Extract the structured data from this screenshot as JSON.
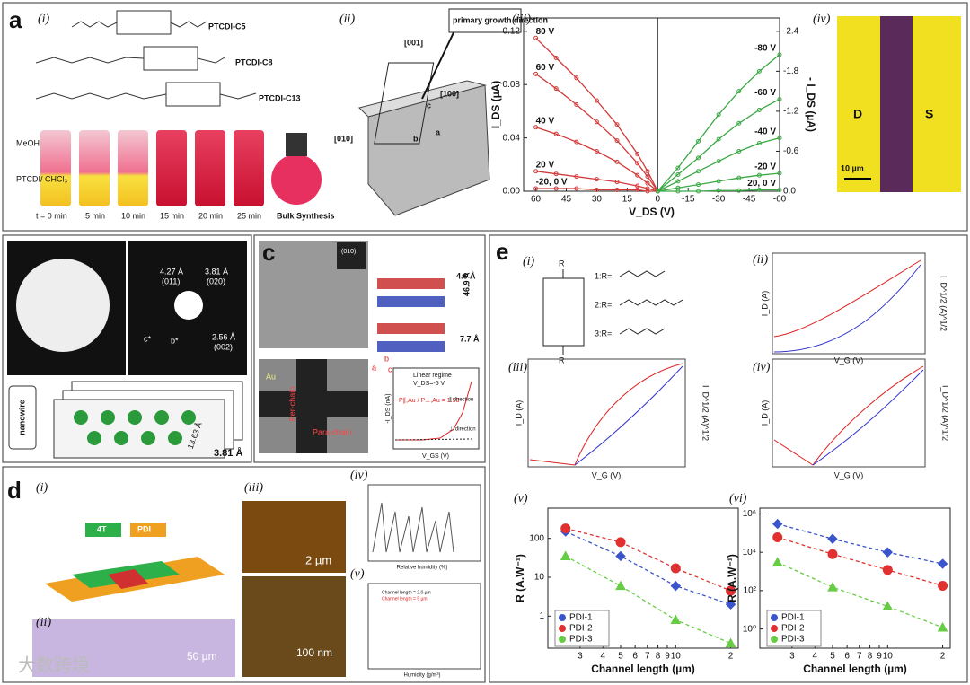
{
  "a": {
    "label": "a",
    "i": {
      "label": "(i)",
      "molecules": [
        "PTCDI-C5",
        "PTCDI-C8",
        "PTCDI-C13"
      ],
      "layers": [
        "MeOH",
        "PTCDI/ CHCl₃"
      ],
      "times": [
        "t = 0 min",
        "5 min",
        "10 min",
        "15 min",
        "20 min",
        "25 min"
      ],
      "bulk": "Bulk Synthesis"
    },
    "ii": {
      "label": "(ii)",
      "growth": "primary growth direction",
      "axes": [
        "[001]",
        "[100]",
        "[010]"
      ],
      "cell": [
        "c",
        "b",
        "a"
      ]
    },
    "iii": {
      "label": "(iii)",
      "chart_data": {
        "type": "line",
        "xlabel": "V_DS (V)",
        "ylabel": "I_DS (µA)",
        "y2label": "- I_DS (µA)",
        "xlim": [
          66,
          -60
        ],
        "ylim": [
          0,
          0.13
        ],
        "y2lim": [
          0,
          -2.6
        ],
        "xticks": [
          60,
          45,
          30,
          15,
          0,
          -15,
          -30,
          -45,
          -60
        ],
        "yticks": [
          {
            "value": 0,
            "label": "0.00"
          },
          {
            "value": 0.04,
            "label": "0.04"
          },
          {
            "value": 0.08,
            "label": "0.08"
          },
          {
            "value": 0.12,
            "label": "0.12"
          }
        ],
        "y2ticks": [
          {
            "value": 0,
            "label": "0.0"
          },
          -0.6,
          -1.2,
          -1.8,
          -2.4
        ],
        "labels": "inline",
        "marker": "circle",
        "series": [
          {
            "name": "80 V",
            "color": "#d23a3a",
            "x": [
              60,
              50,
              40,
              30,
              20,
              10,
              5,
              0
            ],
            "values": [
              0.115,
              0.1,
              0.085,
              0.068,
              0.05,
              0.028,
              0.015,
              0
            ]
          },
          {
            "name": "60 V",
            "color": "#d23a3a",
            "x": [
              60,
              50,
              40,
              30,
              20,
              10,
              5,
              0
            ],
            "values": [
              0.088,
              0.077,
              0.065,
              0.052,
              0.038,
              0.021,
              0.011,
              0
            ]
          },
          {
            "name": "40 V",
            "color": "#d23a3a",
            "x": [
              60,
              50,
              40,
              30,
              20,
              10,
              5,
              0
            ],
            "values": [
              0.048,
              0.043,
              0.037,
              0.03,
              0.022,
              0.012,
              0.006,
              0
            ]
          },
          {
            "name": "20 V",
            "color": "#d23a3a",
            "x": [
              60,
              50,
              40,
              30,
              20,
              10,
              5,
              0
            ],
            "values": [
              0.015,
              0.013,
              0.011,
              0.009,
              0.007,
              0.004,
              0.002,
              0
            ]
          },
          {
            "name": "-20, 0 V",
            "color": "#d23a3a",
            "x": [
              60,
              50,
              40,
              30,
              20,
              10,
              5,
              0
            ],
            "values": [
              0.002,
              0.002,
              0.002,
              0.001,
              0.001,
              0.001,
              0,
              0
            ]
          },
          {
            "name": "-80 V",
            "color": "#3aa844",
            "axis": "y2",
            "x": [
              0,
              -10,
              -20,
              -30,
              -40,
              -50,
              -60
            ],
            "values": [
              0,
              -0.35,
              -0.75,
              -1.15,
              -1.5,
              -1.8,
              -2.05
            ]
          },
          {
            "name": "-60 V",
            "color": "#3aa844",
            "axis": "y2",
            "x": [
              0,
              -10,
              -20,
              -30,
              -40,
              -50,
              -60
            ],
            "values": [
              0,
              -0.25,
              -0.5,
              -0.78,
              -1.02,
              -1.22,
              -1.38
            ]
          },
          {
            "name": "-40 V",
            "color": "#3aa844",
            "axis": "y2",
            "x": [
              0,
              -10,
              -20,
              -30,
              -40,
              -50,
              -60
            ],
            "values": [
              0,
              -0.15,
              -0.3,
              -0.45,
              -0.6,
              -0.72,
              -0.8
            ]
          },
          {
            "name": "-20 V",
            "color": "#3aa844",
            "axis": "y2",
            "x": [
              0,
              -10,
              -20,
              -30,
              -40,
              -50,
              -60
            ],
            "values": [
              0,
              -0.05,
              -0.1,
              -0.15,
              -0.2,
              -0.24,
              -0.27
            ]
          },
          {
            "name": "20, 0 V",
            "color": "#3aa844",
            "axis": "y2",
            "x": [
              0,
              -10,
              -20,
              -30,
              -40,
              -50,
              -60
            ],
            "values": [
              0,
              0,
              0,
              -0.01,
              -0.01,
              -0.02,
              -0.02
            ]
          }
        ]
      }
    },
    "iv": {
      "label": "(iv)",
      "electrodes": [
        "D",
        "S"
      ],
      "scale_bar": "10 µm"
    }
  },
  "b": {
    "label": "b",
    "spots": [
      "4.27 Å",
      "(011)",
      "3.81 Å",
      "(020)",
      "2.56 Å",
      "(002)"
    ],
    "axes": [
      "c*",
      "b*"
    ],
    "nanowire": "nanowire",
    "dims": [
      "13.63 Å",
      "3.81 Å"
    ]
  },
  "c": {
    "label": "c",
    "spot": "(010)",
    "dims": [
      "4.6 Å",
      "46.9 Å",
      "7.7 Å"
    ],
    "axes": [
      "a",
      "b",
      "c"
    ],
    "electrode": "Au",
    "chains": [
      "Per-chain",
      "Para-chain"
    ],
    "notes": [
      "Linear regime",
      "V_DS=-5 V",
      "P∥,Au / P⊥,Au = 1.53",
      "∥ direction",
      "⊥ direction"
    ],
    "xlabel": "V_GS (V)",
    "ylabel": "-I_DS (nA)"
  },
  "d": {
    "label": "d",
    "sub": [
      "(i)",
      "(ii)",
      "(iii)",
      "(iv)",
      "(v)"
    ],
    "blocks": [
      "4T",
      "PDI"
    ],
    "scales": [
      "50 µm",
      "2 µm",
      "100 nm"
    ],
    "legend": [
      "Channel length = 2.0 µm",
      "Channel length = 5 µm"
    ],
    "axis": [
      "Relative humidity (%)",
      "Humidity (g/m³)"
    ]
  },
  "e": {
    "label": "e",
    "sub": [
      "(i)",
      "(ii)",
      "(iii)",
      "(iv)",
      "(v)",
      "(vi)"
    ],
    "r_groups": [
      "1:R=",
      "2:R=",
      "3:R="
    ],
    "atom": "R",
    "vg": "V_G (V)",
    "id": "I_D (A)",
    "idsq": "I_D^1/2 (A)^1/2",
    "v": {
      "chart_data": {
        "type": "scatter",
        "xlog": true,
        "ylog": true,
        "dashed": true,
        "legend": "lower-left",
        "xlabel": "Channel length (µm)",
        "ylabel": "R (A.W⁻¹)",
        "x": [
          2.5,
          5,
          10,
          20
        ],
        "xlim": [
          2,
          22
        ],
        "ylim": [
          0.15,
          600
        ],
        "xticks": [
          3,
          4,
          5,
          6,
          7,
          8,
          9,
          10,
          {
            "value": 20,
            "label": "2"
          }
        ],
        "yticks": [
          1,
          10,
          100
        ],
        "series": [
          {
            "name": "PDI-1",
            "color": "#3a55cc",
            "marker": "diamond",
            "values": [
              150,
              35,
              6,
              2
            ]
          },
          {
            "name": "PDI-2",
            "color": "#e03030",
            "marker": "circle",
            "values": [
              180,
              80,
              17,
              4.5
            ]
          },
          {
            "name": "PDI-3",
            "color": "#66cc44",
            "marker": "triangle",
            "values": [
              35,
              6,
              0.8,
              0.2
            ]
          }
        ]
      }
    },
    "vi": {
      "chart_data": {
        "type": "scatter",
        "xlog": true,
        "ylog": true,
        "dashed": true,
        "legend": "lower-left",
        "xlabel": "Channel length (µm)",
        "ylabel": "R (A.W⁻¹)",
        "x": [
          2.5,
          5,
          10,
          20
        ],
        "xlim": [
          2,
          22
        ],
        "ylim": [
          0.1,
          2000000
        ],
        "xticks": [
          3,
          4,
          5,
          6,
          7,
          8,
          9,
          10,
          {
            "value": 20,
            "label": "2"
          }
        ],
        "yticks": [
          {
            "value": 1,
            "label": "10⁰"
          },
          {
            "value": 100,
            "label": "10²"
          },
          {
            "value": 10000,
            "label": "10⁴"
          },
          {
            "value": 1000000,
            "label": "10⁶"
          }
        ],
        "series": [
          {
            "name": "PDI-1",
            "color": "#3a55cc",
            "marker": "diamond",
            "values": [
              300000,
              50000,
              10000,
              2500
            ]
          },
          {
            "name": "PDI-2",
            "color": "#e03030",
            "marker": "circle",
            "values": [
              60000,
              8000,
              1200,
              180
            ]
          },
          {
            "name": "PDI-3",
            "color": "#66cc44",
            "marker": "triangle",
            "values": [
              3000,
              150,
              15,
              1.2
            ]
          }
        ]
      }
    }
  },
  "watermark": "大数跨境"
}
